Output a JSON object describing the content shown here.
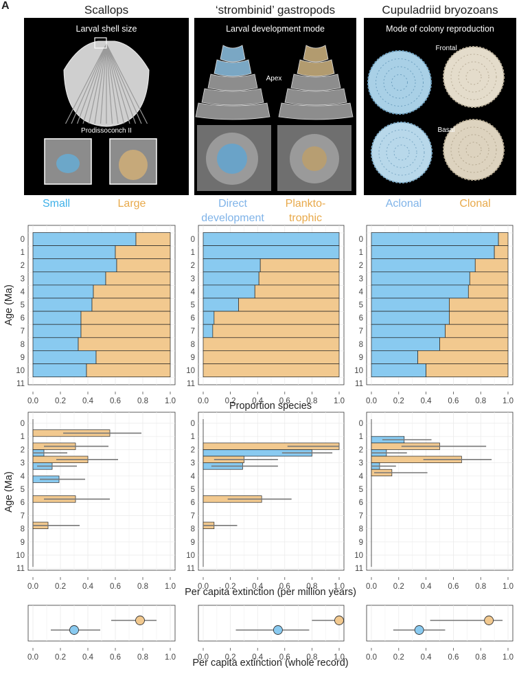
{
  "panel_label": "A",
  "colors": {
    "blue": "#89CAF0",
    "orange": "#F2C98F",
    "blue_text": "#3DB0E8",
    "lightblue_text": "#7FB3E8",
    "orange_text": "#E8A94A"
  },
  "columns": [
    {
      "title": "Scallops",
      "photo_title": "Larval shell size",
      "photo_labels": [
        "Prodissoconch II"
      ],
      "cat_a": "Small",
      "cat_b": "Large"
    },
    {
      "title": "‘strombinid’ gastropods",
      "photo_title": "Larval development mode",
      "photo_labels": [
        "Apex"
      ],
      "cat_a": "Direct\ndevelopment",
      "cat_b": "Plankto-\ntrophic"
    },
    {
      "title": "Cupuladriid bryozoans",
      "photo_title": "Mode of  colony reproduction",
      "photo_labels": [
        "Frontal",
        "Basal"
      ],
      "cat_a": "Aclonal",
      "cat_b": "Clonal"
    }
  ],
  "axis_text": {
    "age_label": "Age (Ma)",
    "proportion_xlabel": "Proportion species",
    "extinction_xlabel": "Per capita extinction (per million years)",
    "whole_xlabel": "Per capita extinction (whole record)",
    "x_ticks": [
      "0.0",
      "0.2",
      "0.4",
      "0.6",
      "0.8",
      "1.0"
    ],
    "age_ticks": [
      "0",
      "1",
      "2",
      "3",
      "4",
      "5",
      "6",
      "7",
      "8",
      "9",
      "10",
      "11"
    ]
  },
  "chart_data": [
    {
      "type": "bar",
      "name": "proportion-scallops",
      "categories": [
        "0",
        "1",
        "2",
        "3",
        "4",
        "5",
        "6",
        "7",
        "8",
        "9",
        "10",
        "11"
      ],
      "series": [
        {
          "name": "Small",
          "values": [
            0.75,
            0.6,
            0.61,
            0.53,
            0.44,
            0.43,
            0.35,
            0.35,
            0.33,
            0.46,
            0.39,
            0
          ]
        }
      ],
      "xlim": [
        0,
        1
      ],
      "xlabel": "Proportion species",
      "ylabel": "Age (Ma)"
    },
    {
      "type": "bar",
      "name": "proportion-gastropods",
      "categories": [
        "0",
        "1",
        "2",
        "3",
        "4",
        "5",
        "6",
        "7",
        "8",
        "9",
        "10",
        "11"
      ],
      "series": [
        {
          "name": "Direct development",
          "values": [
            1.0,
            1.0,
            0.42,
            0.41,
            0.38,
            0.26,
            0.08,
            0.07,
            0.0,
            0.0,
            0.0,
            0
          ]
        }
      ],
      "xlim": [
        0,
        1
      ]
    },
    {
      "type": "bar",
      "name": "proportion-bryozoans",
      "categories": [
        "0",
        "1",
        "2",
        "3",
        "4",
        "5",
        "6",
        "7",
        "8",
        "9",
        "10",
        "11"
      ],
      "series": [
        {
          "name": "Aclonal",
          "values": [
            0.93,
            0.9,
            0.76,
            0.72,
            0.71,
            0.57,
            0.57,
            0.54,
            0.5,
            0.34,
            0.4,
            0
          ]
        }
      ],
      "xlim": [
        0,
        1
      ]
    },
    {
      "type": "bar",
      "name": "extinction-scallops",
      "xlim": [
        0,
        1
      ],
      "xlabel": "Per capita extinction (per million years)",
      "bars": [
        {
          "age": 1,
          "group": "b",
          "value": 0.56,
          "ci": [
            0.22,
            0.79
          ]
        },
        {
          "age": 2,
          "group": "a",
          "value": 0.08,
          "ci": [
            0.0,
            0.25
          ]
        },
        {
          "age": 2,
          "group": "b",
          "value": 0.31,
          "ci": [
            0.08,
            0.55
          ]
        },
        {
          "age": 3,
          "group": "a",
          "value": 0.14,
          "ci": [
            0.03,
            0.32
          ]
        },
        {
          "age": 3,
          "group": "b",
          "value": 0.4,
          "ci": [
            0.17,
            0.62
          ]
        },
        {
          "age": 4,
          "group": "a",
          "value": 0.19,
          "ci": [
            0.05,
            0.38
          ]
        },
        {
          "age": 6,
          "group": "b",
          "value": 0.31,
          "ci": [
            0.08,
            0.56
          ]
        },
        {
          "age": 8,
          "group": "b",
          "value": 0.11,
          "ci": [
            0.0,
            0.34
          ]
        }
      ]
    },
    {
      "type": "bar",
      "name": "extinction-gastropods",
      "xlim": [
        0,
        1
      ],
      "bars": [
        {
          "age": 8,
          "group": "b",
          "value": 0.08,
          "ci": [
            0.0,
            0.25
          ]
        },
        {
          "age": 2,
          "group": "a",
          "value": 0.8,
          "ci": [
            0.58,
            0.95
          ]
        },
        {
          "age": 2,
          "group": "b",
          "value": 1.0,
          "ci": [
            0.62,
            1.0
          ]
        },
        {
          "age": 3,
          "group": "a",
          "value": 0.29,
          "ci": [
            0.06,
            0.55
          ]
        },
        {
          "age": 3,
          "group": "b",
          "value": 0.3,
          "ci": [
            0.08,
            0.55
          ]
        },
        {
          "age": 6,
          "group": "b",
          "value": 0.43,
          "ci": [
            0.18,
            0.65
          ]
        }
      ]
    },
    {
      "type": "bar",
      "name": "extinction-bryozoans",
      "xlim": [
        0,
        1
      ],
      "bars": [
        {
          "age": 1,
          "group": "a",
          "value": 0.24,
          "ci": [
            0.08,
            0.44
          ]
        },
        {
          "age": 2,
          "group": "b",
          "value": 0.5,
          "ci": [
            0.22,
            0.84
          ]
        },
        {
          "age": 2,
          "group": "a",
          "value": 0.11,
          "ci": [
            0.0,
            0.26
          ]
        },
        {
          "age": 3,
          "group": "b",
          "value": 0.66,
          "ci": [
            0.38,
            0.88
          ]
        },
        {
          "age": 3,
          "group": "a",
          "value": 0.06,
          "ci": [
            0.0,
            0.18
          ]
        },
        {
          "age": 4,
          "group": "b",
          "value": 0.15,
          "ci": [
            0.02,
            0.41
          ]
        }
      ]
    },
    {
      "type": "scatter",
      "name": "whole-scallops",
      "xlim": [
        0,
        1
      ],
      "xlabel": "Per capita extinction (whole record)",
      "points": [
        {
          "group": "b",
          "value": 0.78,
          "ci": [
            0.57,
            0.9
          ]
        },
        {
          "group": "a",
          "value": 0.3,
          "ci": [
            0.13,
            0.49
          ]
        }
      ]
    },
    {
      "type": "scatter",
      "name": "whole-gastropods",
      "xlim": [
        0,
        1
      ],
      "points": [
        {
          "group": "b",
          "value": 1.0,
          "ci": [
            0.8,
            1.0
          ]
        },
        {
          "group": "a",
          "value": 0.55,
          "ci": [
            0.24,
            0.78
          ]
        }
      ]
    },
    {
      "type": "scatter",
      "name": "whole-bryozoans",
      "xlim": [
        0,
        1
      ],
      "points": [
        {
          "group": "b",
          "value": 0.86,
          "ci": [
            0.43,
            0.96
          ]
        },
        {
          "group": "a",
          "value": 0.35,
          "ci": [
            0.16,
            0.54
          ]
        }
      ]
    }
  ]
}
